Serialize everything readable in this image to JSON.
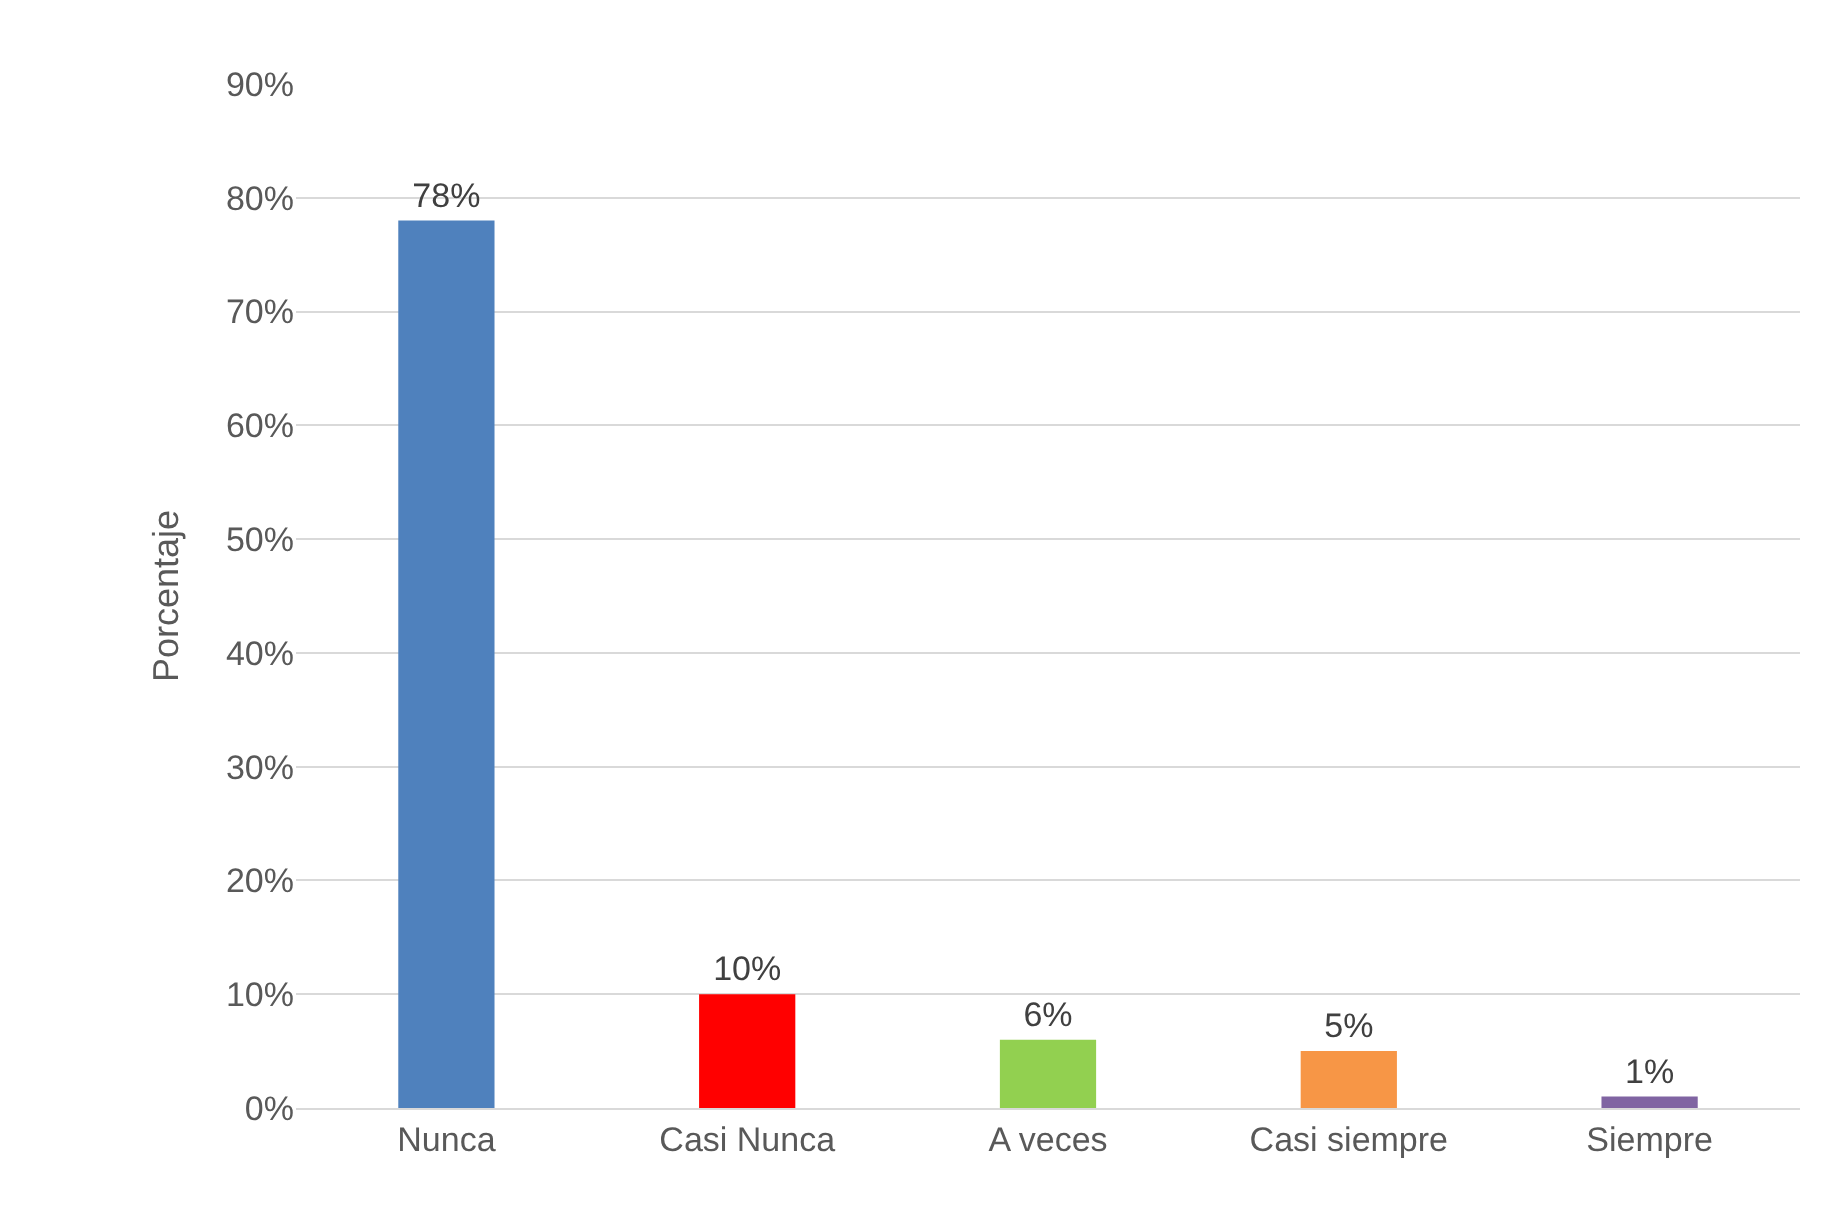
{
  "chart_data": {
    "type": "bar",
    "ylabel": "Porcentaje",
    "categories": [
      "Nunca",
      "Casi Nunca",
      "A veces",
      "Casi siempre",
      "Siempre"
    ],
    "values": [
      78,
      10,
      6,
      5,
      1
    ],
    "colors": [
      "#4f81bd",
      "#ff0000",
      "#92d050",
      "#f79646",
      "#8064a2"
    ],
    "ylim": [
      0,
      90
    ],
    "yticks": [
      {
        "value": 0,
        "label": "0%"
      },
      {
        "value": 10,
        "label": "10%"
      },
      {
        "value": 20,
        "label": "20%"
      },
      {
        "value": 30,
        "label": "30%"
      },
      {
        "value": 40,
        "label": "40%"
      },
      {
        "value": 50,
        "label": "50%"
      },
      {
        "value": 60,
        "label": "60%"
      },
      {
        "value": 70,
        "label": "70%"
      },
      {
        "value": 80,
        "label": "80%"
      },
      {
        "value": 90,
        "label": "90%"
      }
    ],
    "value_labels": [
      "78%",
      "10%",
      "6%",
      "5%",
      "1%"
    ],
    "grid": "y"
  }
}
